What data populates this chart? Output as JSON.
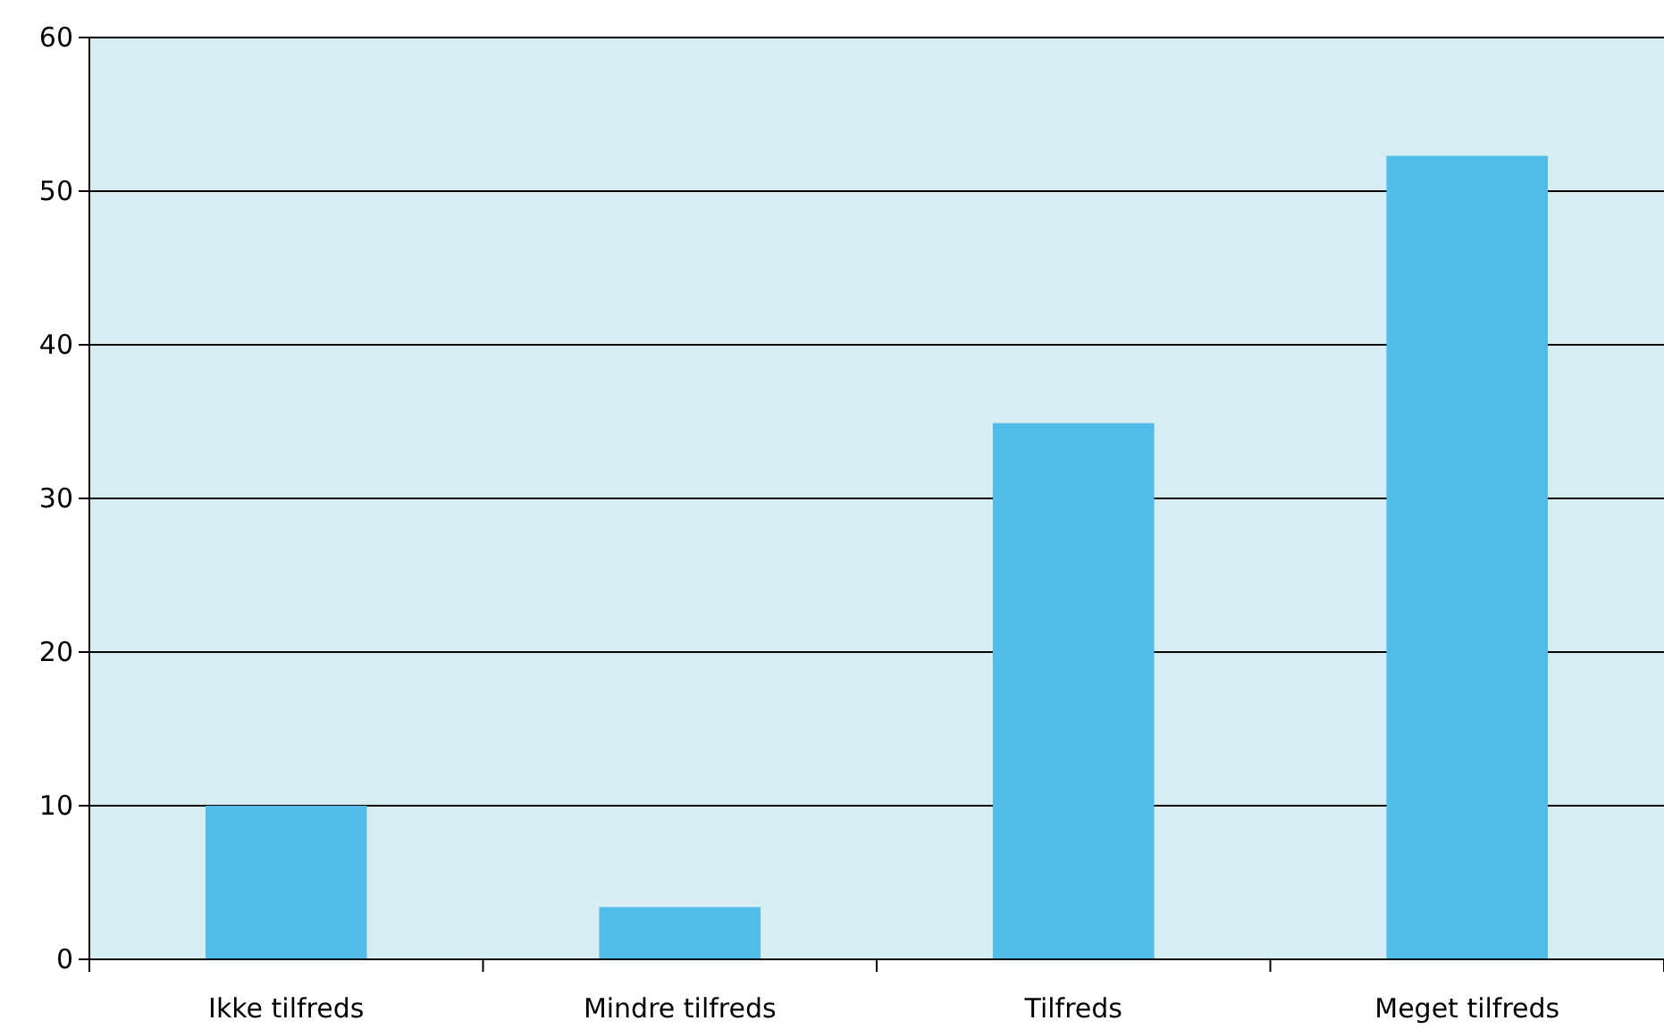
{
  "chart_data": {
    "type": "bar",
    "categories": [
      "Ikke tilfreds",
      "Mindre tilfreds",
      "Tilfreds",
      "Meget tilfreds"
    ],
    "values": [
      10,
      3.4,
      34.9,
      52.3
    ],
    "color": "#50bde9",
    "ylim": [
      0,
      60
    ],
    "yticks": [
      0,
      10,
      20,
      30,
      40,
      50,
      60
    ],
    "grid": "y"
  }
}
